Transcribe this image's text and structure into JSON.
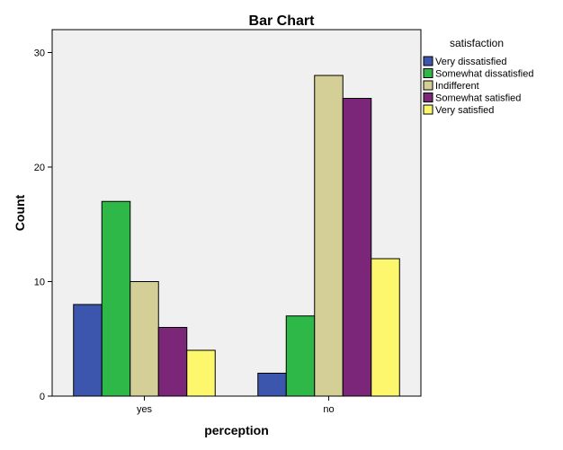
{
  "chart_data": {
    "type": "bar",
    "title": "Bar Chart",
    "xlabel": "perception",
    "ylabel": "Count",
    "ylim": [
      0,
      32
    ],
    "yticks": [
      0,
      10,
      20,
      30
    ],
    "categories": [
      "yes",
      "no"
    ],
    "legend_title": "satisfaction",
    "legend_position": "right",
    "grid": false,
    "series": [
      {
        "name": "Very dissatisfied",
        "color": "#3c56ad",
        "values": [
          8,
          2
        ]
      },
      {
        "name": "Somewhat dissatisfied",
        "color": "#2eb848",
        "values": [
          17,
          7
        ]
      },
      {
        "name": "Indifferent",
        "color": "#d4cf97",
        "values": [
          10,
          28
        ]
      },
      {
        "name": "Somewhat satisfied",
        "color": "#7b2679",
        "values": [
          6,
          26
        ]
      },
      {
        "name": "Very satisfied",
        "color": "#fcf76c",
        "values": [
          4,
          12
        ]
      }
    ],
    "plot_background": "#f0f0f0"
  }
}
